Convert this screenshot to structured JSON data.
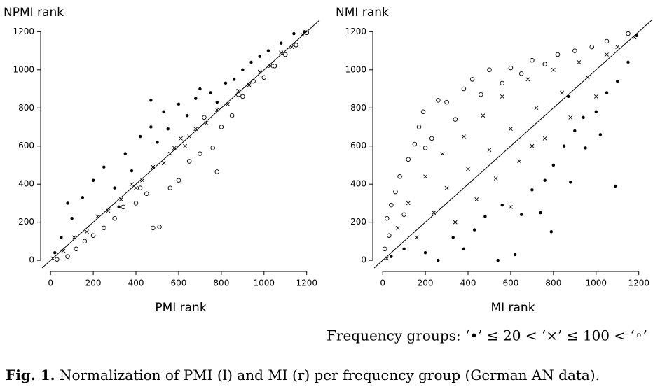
{
  "chart_data": [
    {
      "type": "scatter",
      "x_label": "PMI rank",
      "y_label": "NPMI rank",
      "xlim": [
        -40,
        1260
      ],
      "ylim": [
        -40,
        1260
      ],
      "xticks": [
        0,
        200,
        400,
        600,
        800,
        1000,
        1200
      ],
      "yticks": [
        0,
        200,
        400,
        600,
        800,
        1000,
        1200
      ],
      "diagonal": true,
      "series": [
        {
          "marker": "dot",
          "color": "#000000",
          "x": [
            20,
            50,
            80,
            100,
            150,
            200,
            250,
            300,
            350,
            380,
            420,
            470,
            500,
            530,
            550,
            600,
            640,
            680,
            700,
            750,
            780,
            820,
            860,
            900,
            940,
            980,
            1020,
            1080,
            1140,
            1190,
            470,
            320
          ],
          "values": [
            40,
            120,
            300,
            220,
            330,
            420,
            490,
            380,
            560,
            470,
            650,
            700,
            620,
            780,
            690,
            820,
            760,
            850,
            900,
            880,
            830,
            930,
            950,
            1000,
            1040,
            1070,
            1100,
            1140,
            1190,
            1200,
            840,
            280
          ]
        },
        {
          "marker": "cross",
          "color": "#000000",
          "x": [
            10,
            60,
            110,
            170,
            220,
            270,
            330,
            380,
            430,
            480,
            530,
            580,
            630,
            680,
            730,
            780,
            830,
            880,
            930,
            980,
            1030,
            1080,
            1130,
            1180,
            560,
            610,
            650,
            400
          ],
          "values": [
            10,
            50,
            120,
            150,
            230,
            260,
            320,
            400,
            420,
            490,
            510,
            590,
            600,
            690,
            720,
            790,
            820,
            890,
            920,
            990,
            1020,
            1090,
            1120,
            1185,
            560,
            640,
            650,
            380
          ]
        },
        {
          "marker": "circle",
          "color": "#000000",
          "x": [
            30,
            80,
            120,
            160,
            200,
            250,
            300,
            340,
            400,
            450,
            480,
            510,
            560,
            600,
            650,
            700,
            760,
            780,
            800,
            850,
            880,
            900,
            950,
            1000,
            1050,
            1100,
            1150,
            1200,
            420,
            720
          ],
          "values": [
            5,
            20,
            60,
            100,
            130,
            170,
            220,
            280,
            300,
            350,
            170,
            175,
            380,
            420,
            520,
            560,
            590,
            465,
            700,
            760,
            870,
            860,
            940,
            960,
            1020,
            1080,
            1130,
            1195,
            380,
            750
          ]
        }
      ]
    },
    {
      "type": "scatter",
      "x_label": "MI rank",
      "y_label": "NMI rank",
      "xlim": [
        -40,
        1260
      ],
      "ylim": [
        -40,
        1260
      ],
      "xticks": [
        0,
        200,
        400,
        600,
        800,
        1000,
        1200
      ],
      "yticks": [
        0,
        200,
        400,
        600,
        800,
        1000,
        1200
      ],
      "diagonal": true,
      "series": [
        {
          "marker": "dot",
          "color": "#000000",
          "x": [
            40,
            100,
            200,
            260,
            330,
            380,
            430,
            480,
            540,
            560,
            620,
            650,
            700,
            740,
            790,
            800,
            850,
            880,
            900,
            950,
            1000,
            1020,
            1050,
            1090,
            1100,
            1150,
            1190,
            870,
            940,
            760
          ],
          "values": [
            20,
            60,
            40,
            0,
            120,
            60,
            160,
            230,
            0,
            290,
            30,
            240,
            370,
            250,
            150,
            500,
            600,
            410,
            680,
            590,
            780,
            660,
            880,
            390,
            940,
            1040,
            1180,
            860,
            750,
            420
          ]
        },
        {
          "marker": "cross",
          "color": "#000000",
          "x": [
            20,
            70,
            120,
            160,
            200,
            240,
            280,
            300,
            340,
            380,
            400,
            440,
            470,
            500,
            530,
            560,
            600,
            640,
            680,
            720,
            760,
            800,
            840,
            880,
            920,
            960,
            1000,
            1050,
            1100,
            1180,
            600,
            700
          ],
          "values": [
            10,
            170,
            300,
            120,
            440,
            250,
            560,
            380,
            200,
            650,
            480,
            320,
            760,
            580,
            430,
            860,
            690,
            520,
            950,
            800,
            640,
            1000,
            880,
            750,
            1040,
            960,
            860,
            1080,
            1120,
            1170,
            280,
            600
          ]
        },
        {
          "marker": "circle",
          "color": "#000000",
          "x": [
            10,
            20,
            40,
            60,
            80,
            100,
            120,
            150,
            170,
            190,
            200,
            230,
            260,
            300,
            340,
            380,
            420,
            460,
            500,
            560,
            600,
            650,
            700,
            760,
            820,
            900,
            980,
            1050,
            1150,
            30
          ],
          "values": [
            60,
            220,
            290,
            360,
            440,
            240,
            530,
            610,
            700,
            780,
            590,
            640,
            840,
            830,
            740,
            900,
            950,
            870,
            1000,
            930,
            1010,
            980,
            1050,
            1030,
            1080,
            1100,
            1120,
            1150,
            1190,
            130
          ]
        }
      ]
    }
  ],
  "legend": "Frequency groups: ‘•’ ≤ 20 < ‘×’ ≤ 100 < ‘◦’",
  "caption_label": "Fig. 1.",
  "caption_text": "Normalization of PMI (l) and MI (r) per frequency group (German AN data)."
}
